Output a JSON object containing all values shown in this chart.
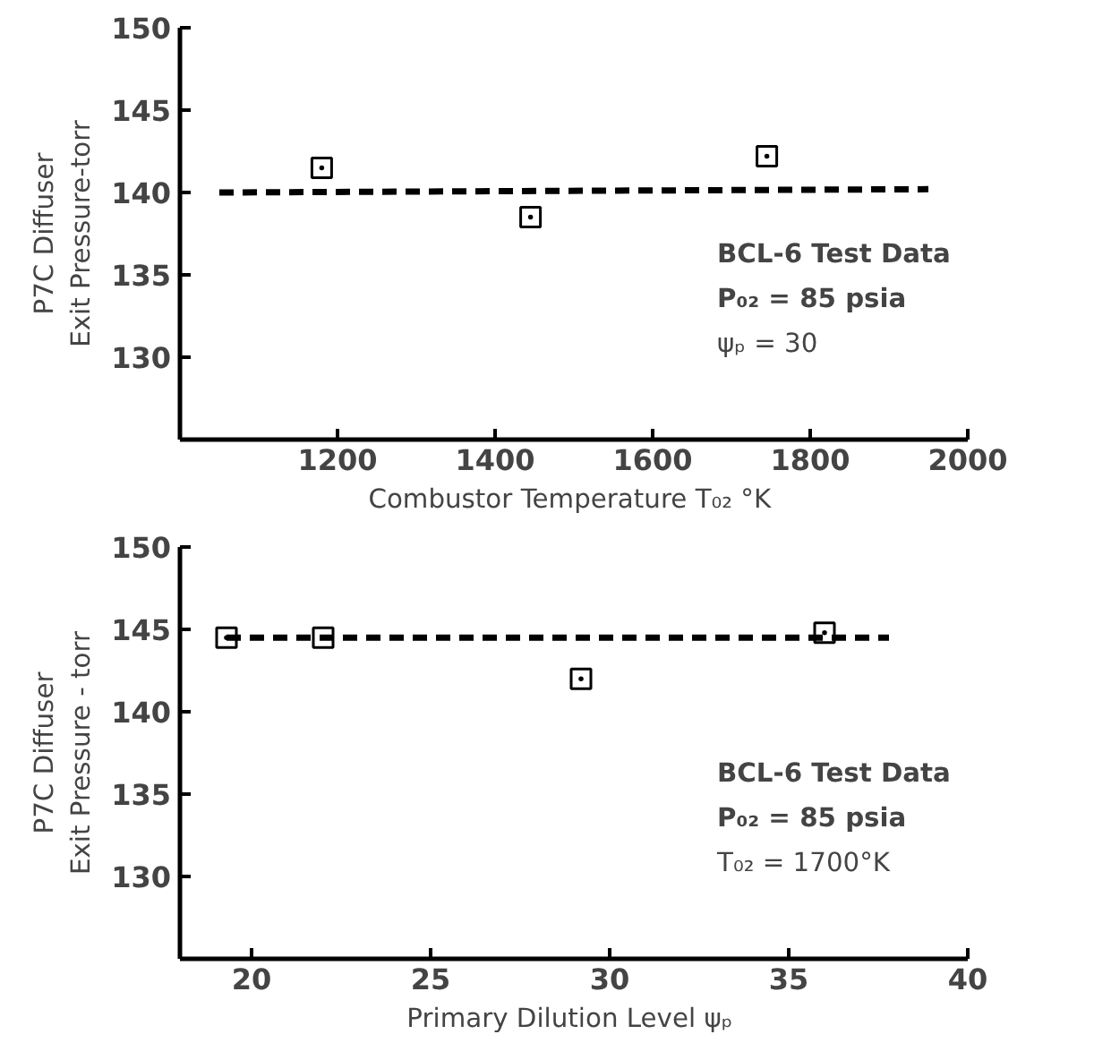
{
  "chart_data": [
    {
      "type": "scatter",
      "xlabel": "Combustor Temperature  T₀₂ °K",
      "ylabel": "P7C Diffuser\nExit Pressure-torr",
      "xlim": [
        1000,
        2000
      ],
      "ylim": [
        125,
        150
      ],
      "xticks": [
        1200,
        1400,
        1600,
        1800,
        2000
      ],
      "yticks": [
        130,
        135,
        140,
        145,
        150
      ],
      "grid": false,
      "marker": "square",
      "series": [
        {
          "color": "#000000",
          "x": [
            1180,
            1445,
            1745
          ],
          "values": [
            141.5,
            138.5,
            142.2
          ]
        },
        {
          "type": "line",
          "color": "#000000",
          "line_style": "dashed",
          "marker": "none",
          "x": [
            1050,
            1950
          ],
          "values": [
            140.0,
            140.2
          ]
        }
      ],
      "annotations": [
        "BCL-6 Test Data",
        "P₀₂ = 85 psia",
        "ψₚ = 30"
      ]
    },
    {
      "type": "scatter",
      "xlabel": "Primary Dilution Level  ψₚ",
      "ylabel": "P7C Diffuser\nExit Pressure - torr",
      "xlim": [
        18,
        40
      ],
      "ylim": [
        125,
        150
      ],
      "xticks": [
        20,
        25,
        30,
        35,
        40
      ],
      "yticks": [
        130,
        135,
        140,
        145,
        150
      ],
      "grid": false,
      "marker": "square",
      "series": [
        {
          "color": "#000000",
          "x": [
            19.3,
            22.0,
            29.2,
            36.0
          ],
          "values": [
            144.5,
            144.5,
            142.0,
            144.8
          ]
        },
        {
          "type": "line",
          "color": "#000000",
          "line_style": "dashed",
          "marker": "none",
          "x": [
            19.3,
            37.8
          ],
          "values": [
            144.5,
            144.5
          ]
        }
      ],
      "annotations": [
        "BCL-6 Test Data",
        "P₀₂ = 85 psia",
        "T₀₂ = 1700°K"
      ]
    }
  ]
}
